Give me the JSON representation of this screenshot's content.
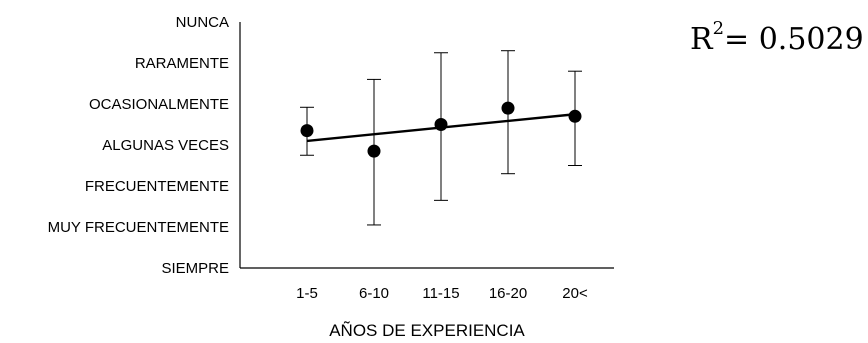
{
  "chart_data": {
    "type": "scatter",
    "title": "",
    "xlabel": "AÑOS DE EXPERIENCIA",
    "ylabel": "",
    "categories": [
      "1-5",
      "6-10",
      "11-15",
      "16-20",
      "20<"
    ],
    "y_categories": [
      "SIEMPRE",
      "MUY FRECUENTEMENTE",
      "FRECUENTEMENTE",
      "ALGUNAS VECES",
      "OCASIONALMENTE",
      "RARAMENTE",
      "NUNCA"
    ],
    "ylim": [
      1,
      7
    ],
    "series": [
      {
        "values": [
          4.35,
          3.85,
          4.5,
          4.9,
          4.7
        ],
        "error_low": [
          3.75,
          2.05,
          2.65,
          3.3,
          3.5
        ],
        "error_high": [
          4.92,
          5.6,
          6.25,
          6.3,
          5.8
        ]
      }
    ],
    "trendline": {
      "start": 4.1,
      "end": 4.75
    },
    "r_squared": {
      "label": "R",
      "exponent": "2",
      "value": "= 0.5029"
    },
    "legend": "none",
    "grid": false
  }
}
